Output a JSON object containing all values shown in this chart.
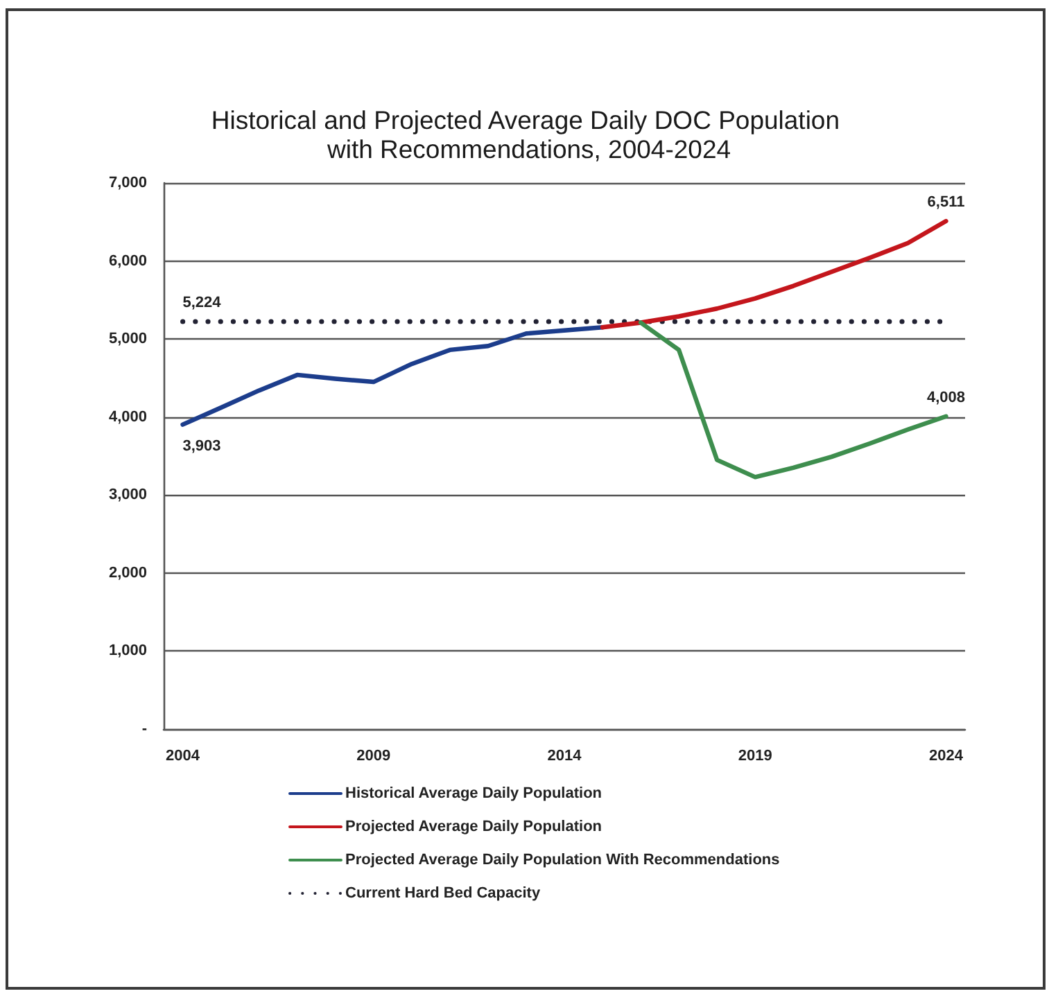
{
  "chart_data": {
    "type": "line",
    "title": "Historical and Projected Average Daily DOC Population with Recommendations, 2004-2024",
    "categories": [
      "2004",
      null,
      null,
      null,
      null,
      "2009",
      null,
      null,
      null,
      null,
      "2014",
      null,
      null,
      null,
      null,
      "2019",
      null,
      null,
      null,
      null,
      "2024"
    ],
    "series": [
      {
        "name": "Historical Average Daily Population",
        "color": "#1c3d8c",
        "line_style": "solid",
        "values": [
          3903,
          4120,
          4340,
          4540,
          4490,
          4450,
          4680,
          4860,
          4910,
          5070,
          5110,
          5150,
          null,
          null,
          null,
          null,
          null,
          null,
          null,
          null,
          null
        ],
        "value_labels": [
          "3,903",
          null,
          null,
          null,
          null,
          null,
          null,
          null,
          null,
          null,
          null,
          null,
          null,
          null,
          null,
          null,
          null,
          null,
          null,
          null,
          null
        ]
      },
      {
        "name": "Projected Average Daily Population",
        "color": "#c4161c",
        "line_style": "solid",
        "values": [
          null,
          null,
          null,
          null,
          null,
          null,
          null,
          null,
          null,
          null,
          null,
          5150,
          5210,
          5290,
          5390,
          5520,
          5680,
          5860,
          6040,
          6230,
          6511
        ],
        "value_labels": [
          null,
          null,
          null,
          null,
          null,
          null,
          null,
          null,
          null,
          null,
          null,
          null,
          null,
          null,
          null,
          null,
          null,
          null,
          null,
          null,
          "6,511"
        ]
      },
      {
        "name": "Projected Average Daily Population With Recommendations",
        "color": "#3e8e4e",
        "line_style": "solid",
        "values": [
          null,
          null,
          null,
          null,
          null,
          null,
          null,
          null,
          null,
          null,
          null,
          null,
          5210,
          4860,
          3450,
          3230,
          3350,
          3490,
          3660,
          3840,
          4008
        ],
        "value_labels": [
          null,
          null,
          null,
          null,
          null,
          null,
          null,
          null,
          null,
          null,
          null,
          null,
          null,
          null,
          null,
          null,
          null,
          null,
          null,
          null,
          "4,008"
        ]
      },
      {
        "name": "Current Hard Bed Capacity",
        "color": "#222233",
        "line_style": "dotted",
        "values": [
          5224,
          5224,
          5224,
          5224,
          5224,
          5224,
          5224,
          5224,
          5224,
          5224,
          5224,
          5224,
          5224,
          5224,
          5224,
          5224,
          5224,
          5224,
          5224,
          5224,
          5224
        ],
        "value_labels": [
          "5,224",
          null,
          null,
          null,
          null,
          null,
          null,
          null,
          null,
          null,
          null,
          null,
          null,
          null,
          null,
          null,
          null,
          null,
          null,
          null,
          null
        ]
      }
    ],
    "ylim": [
      0,
      7000
    ],
    "yticks": [
      {
        "value": 0,
        "label": "-"
      },
      {
        "value": 1000,
        "label": "1,000"
      },
      {
        "value": 2000,
        "label": "2,000"
      },
      {
        "value": 3000,
        "label": "3,000"
      },
      {
        "value": 4000,
        "label": "4,000"
      },
      {
        "value": 5000,
        "label": "5,000"
      },
      {
        "value": 6000,
        "label": "6,000"
      },
      {
        "value": 7000,
        "label": "7,000"
      }
    ],
    "grid": "y",
    "legend": "bottom",
    "marker": "none"
  }
}
